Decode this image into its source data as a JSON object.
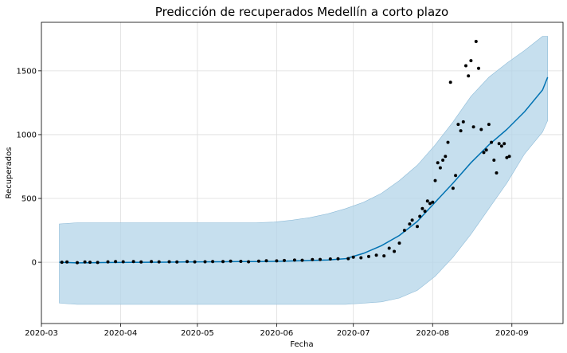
{
  "chart_data": {
    "type": "line",
    "title": "Predicción de recuperados Medellín a corto plazo",
    "xlabel": "Fecha",
    "ylabel": "Recuperados",
    "xlim": [
      "2020-03-01",
      "2020-09-21"
    ],
    "ylim": [
      -480,
      1880
    ],
    "grid": true,
    "x_ticks": [
      "2020-03",
      "2020-04",
      "2020-05",
      "2020-06",
      "2020-07",
      "2020-08",
      "2020-09"
    ],
    "x_tick_dates": [
      "2020-03-01",
      "2020-04-01",
      "2020-05-01",
      "2020-06-01",
      "2020-07-01",
      "2020-08-01",
      "2020-09-01"
    ],
    "y_ticks": [
      0,
      500,
      1000,
      1500
    ],
    "colors": {
      "forecast": "#0072B2",
      "interval": "#b3d4e8",
      "interval_edge": "#8fbcd8",
      "observed": "#000000",
      "grid": "#dddddd"
    },
    "forecast": {
      "x": [
        "2020-03-08",
        "2020-03-15",
        "2020-03-22",
        "2020-03-29",
        "2020-04-05",
        "2020-04-12",
        "2020-04-19",
        "2020-04-26",
        "2020-05-03",
        "2020-05-10",
        "2020-05-17",
        "2020-05-24",
        "2020-05-31",
        "2020-06-07",
        "2020-06-14",
        "2020-06-21",
        "2020-06-28",
        "2020-07-05",
        "2020-07-12",
        "2020-07-19",
        "2020-07-26",
        "2020-08-02",
        "2020-08-09",
        "2020-08-16",
        "2020-08-23",
        "2020-08-30",
        "2020-09-06",
        "2020-09-13",
        "2020-09-15"
      ],
      "yhat": [
        0,
        -5,
        -3,
        -2,
        -1,
        0,
        1,
        2,
        3,
        4,
        5,
        6,
        7,
        10,
        14,
        18,
        28,
        70,
        130,
        210,
        320,
        470,
        620,
        780,
        920,
        1040,
        1180,
        1350,
        1450
      ],
      "lower": [
        -320,
        -330,
        -330,
        -330,
        -330,
        -330,
        -330,
        -330,
        -330,
        -330,
        -330,
        -330,
        -330,
        -330,
        -330,
        -330,
        -330,
        -320,
        -310,
        -280,
        -220,
        -110,
        40,
        220,
        420,
        620,
        850,
        1020,
        1110
      ],
      "upper": [
        300,
        310,
        310,
        310,
        310,
        310,
        310,
        310,
        310,
        310,
        310,
        310,
        315,
        330,
        350,
        380,
        420,
        470,
        540,
        640,
        760,
        920,
        1100,
        1300,
        1450,
        1560,
        1660,
        1770,
        1770
      ]
    },
    "observed": {
      "x": [
        "2020-03-09",
        "2020-03-11",
        "2020-03-15",
        "2020-03-18",
        "2020-03-20",
        "2020-03-23",
        "2020-03-27",
        "2020-03-30",
        "2020-04-02",
        "2020-04-06",
        "2020-04-09",
        "2020-04-13",
        "2020-04-16",
        "2020-04-20",
        "2020-04-23",
        "2020-04-27",
        "2020-04-30",
        "2020-05-04",
        "2020-05-07",
        "2020-05-11",
        "2020-05-14",
        "2020-05-18",
        "2020-05-21",
        "2020-05-25",
        "2020-05-28",
        "2020-06-01",
        "2020-06-04",
        "2020-06-08",
        "2020-06-11",
        "2020-06-15",
        "2020-06-18",
        "2020-06-22",
        "2020-06-25",
        "2020-06-29",
        "2020-07-01",
        "2020-07-04",
        "2020-07-07",
        "2020-07-10",
        "2020-07-13",
        "2020-07-15",
        "2020-07-17",
        "2020-07-19",
        "2020-07-21",
        "2020-07-23",
        "2020-07-24",
        "2020-07-26",
        "2020-07-27",
        "2020-07-28",
        "2020-07-29",
        "2020-07-30",
        "2020-07-31",
        "2020-08-01",
        "2020-08-02",
        "2020-08-03",
        "2020-08-04",
        "2020-08-05",
        "2020-08-06",
        "2020-08-07",
        "2020-08-08",
        "2020-08-09",
        "2020-08-10",
        "2020-08-11",
        "2020-08-12",
        "2020-08-13",
        "2020-08-14",
        "2020-08-15",
        "2020-08-16",
        "2020-08-17",
        "2020-08-18",
        "2020-08-19",
        "2020-08-20",
        "2020-08-21",
        "2020-08-22",
        "2020-08-23",
        "2020-08-24",
        "2020-08-25",
        "2020-08-26",
        "2020-08-27",
        "2020-08-28",
        "2020-08-29",
        "2020-08-30",
        "2020-08-31"
      ],
      "y": [
        0,
        2,
        -3,
        2,
        0,
        -2,
        3,
        6,
        4,
        5,
        2,
        6,
        3,
        4,
        2,
        5,
        3,
        4,
        6,
        5,
        8,
        7,
        4,
        9,
        12,
        11,
        14,
        17,
        16,
        21,
        22,
        26,
        27,
        28,
        40,
        35,
        45,
        55,
        50,
        110,
        85,
        150,
        250,
        300,
        330,
        280,
        360,
        420,
        400,
        480,
        460,
        470,
        640,
        780,
        740,
        800,
        830,
        940,
        1410,
        580,
        680,
        1080,
        1030,
        1100,
        1540,
        1460,
        1580,
        1060,
        1730,
        1520,
        1040,
        860,
        880,
        1080,
        940,
        800,
        700,
        930,
        910,
        930,
        820,
        830
      ]
    }
  }
}
